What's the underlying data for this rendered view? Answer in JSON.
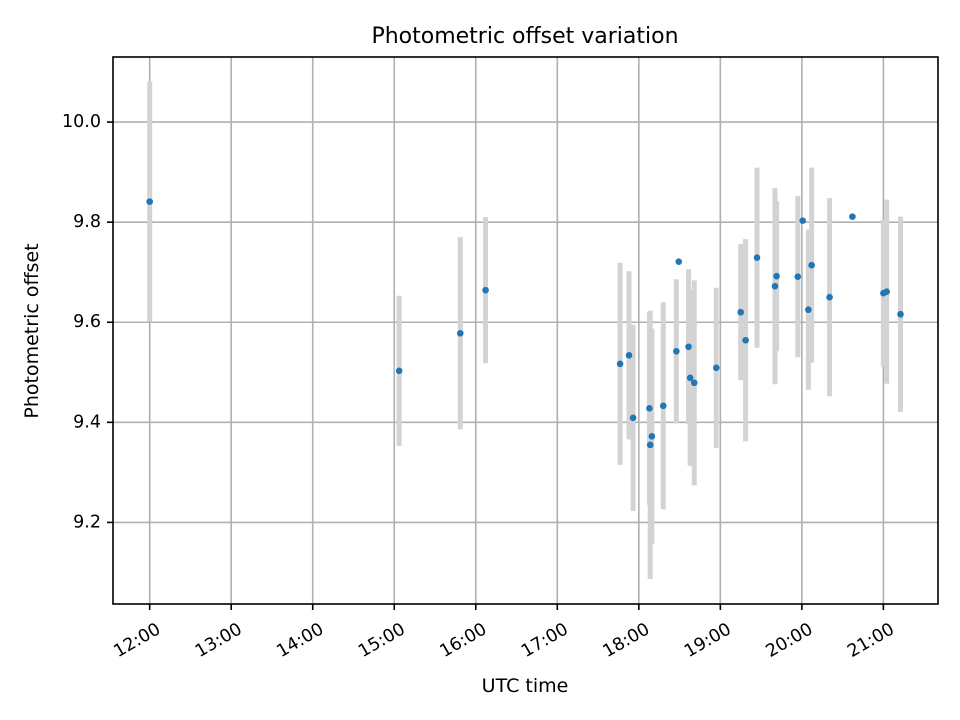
{
  "chart_data": {
    "type": "scatter",
    "title": "Photometric offset variation",
    "xlabel": "UTC time",
    "ylabel": "Photometric offset",
    "x_unit": "UTC time (hours)",
    "xlim": [
      11.55,
      21.67
    ],
    "ylim": [
      9.037,
      10.13
    ],
    "xticks": [
      {
        "value": 12,
        "label": "12:00"
      },
      {
        "value": 13,
        "label": "13:00"
      },
      {
        "value": 14,
        "label": "14:00"
      },
      {
        "value": 15,
        "label": "15:00"
      },
      {
        "value": 16,
        "label": "16:00"
      },
      {
        "value": 17,
        "label": "17:00"
      },
      {
        "value": 18,
        "label": "18:00"
      },
      {
        "value": 19,
        "label": "19:00"
      },
      {
        "value": 20,
        "label": "20:00"
      },
      {
        "value": 21,
        "label": "21:00"
      }
    ],
    "yticks": [
      {
        "value": 9.2,
        "label": "9.2"
      },
      {
        "value": 9.4,
        "label": "9.4"
      },
      {
        "value": 9.6,
        "label": "9.6"
      },
      {
        "value": 9.8,
        "label": "9.8"
      },
      {
        "value": 10.0,
        "label": "10.0"
      }
    ],
    "grid": true,
    "point_color": "#1f77b4",
    "errorbar_color": "#d3d3d3",
    "points": [
      {
        "x": 12.0,
        "y": 9.841,
        "err": 0.24
      },
      {
        "x": 15.06,
        "y": 9.503,
        "err": 0.15
      },
      {
        "x": 15.81,
        "y": 9.578,
        "err": 0.192
      },
      {
        "x": 16.12,
        "y": 9.664,
        "err": 0.146
      },
      {
        "x": 17.77,
        "y": 9.517,
        "err": 0.202
      },
      {
        "x": 17.88,
        "y": 9.534,
        "err": 0.168
      },
      {
        "x": 17.93,
        "y": 9.409,
        "err": 0.186
      },
      {
        "x": 18.13,
        "y": 9.428,
        "err": 0.193
      },
      {
        "x": 18.14,
        "y": 9.355,
        "err": 0.268
      },
      {
        "x": 18.16,
        "y": 9.372,
        "err": 0.215
      },
      {
        "x": 18.3,
        "y": 9.433,
        "err": 0.207
      },
      {
        "x": 18.46,
        "y": 9.542,
        "err": 0.144
      },
      {
        "x": 18.49,
        "y": 9.721,
        "err": 0.0
      },
      {
        "x": 18.61,
        "y": 9.551,
        "err": 0.155
      },
      {
        "x": 18.63,
        "y": 9.489,
        "err": 0.176
      },
      {
        "x": 18.68,
        "y": 9.479,
        "err": 0.205
      },
      {
        "x": 18.95,
        "y": 9.509,
        "err": 0.16
      },
      {
        "x": 19.25,
        "y": 9.62,
        "err": 0.136
      },
      {
        "x": 19.31,
        "y": 9.564,
        "err": 0.202
      },
      {
        "x": 19.45,
        "y": 9.729,
        "err": 0.18
      },
      {
        "x": 19.67,
        "y": 9.672,
        "err": 0.196
      },
      {
        "x": 19.69,
        "y": 9.692,
        "err": 0.15
      },
      {
        "x": 19.95,
        "y": 9.691,
        "err": 0.161
      },
      {
        "x": 20.01,
        "y": 9.803,
        "err": 0.0
      },
      {
        "x": 20.08,
        "y": 9.625,
        "err": 0.16
      },
      {
        "x": 20.12,
        "y": 9.714,
        "err": 0.195
      },
      {
        "x": 20.34,
        "y": 9.65,
        "err": 0.198
      },
      {
        "x": 20.62,
        "y": 9.811,
        "err": 0.0
      },
      {
        "x": 21.0,
        "y": 9.658,
        "err": 0.147
      },
      {
        "x": 21.04,
        "y": 9.661,
        "err": 0.184
      },
      {
        "x": 21.21,
        "y": 9.616,
        "err": 0.195
      }
    ]
  }
}
